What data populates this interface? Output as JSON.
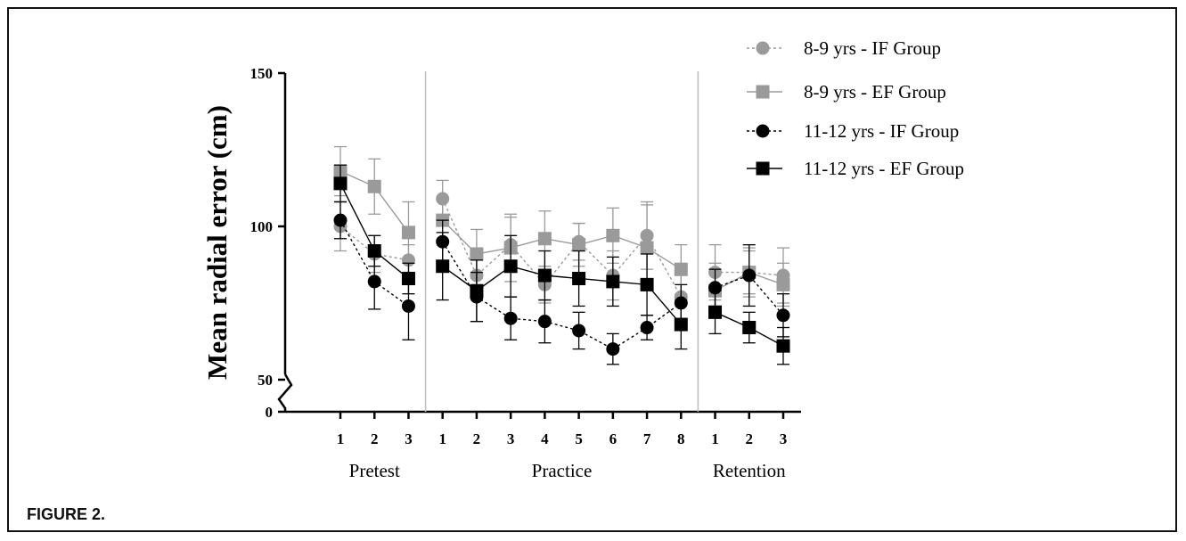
{
  "caption": "FIGURE 2.",
  "chart_data": {
    "type": "line",
    "ylabel": "Mean radial error (cm)",
    "yticks": [
      "0",
      "50",
      "100",
      "150"
    ],
    "ylim_upper": [
      50,
      150
    ],
    "axis_break": true,
    "groups": [
      {
        "label": "Pretest",
        "ticks": [
          "1",
          "2",
          "3"
        ]
      },
      {
        "label": "Practice",
        "ticks": [
          "1",
          "2",
          "3",
          "4",
          "5",
          "6",
          "7",
          "8"
        ]
      },
      {
        "label": "Retention",
        "ticks": [
          "1",
          "2",
          "3"
        ]
      }
    ],
    "legend_position": "top-right",
    "series": [
      {
        "name": "8-9 yrs - IF Group",
        "marker": "circle",
        "color": "#9a9a9a",
        "dash": "dotted",
        "values": [
          100,
          91,
          89,
          109,
          84,
          94,
          81,
          95,
          84,
          97,
          77,
          85,
          85,
          84
        ],
        "errors": [
          8,
          6,
          5,
          6,
          6,
          9,
          6,
          6,
          8,
          11,
          7,
          9,
          7,
          9
        ]
      },
      {
        "name": "8-9 yrs - EF Group",
        "marker": "square",
        "color": "#9a9a9a",
        "dash": "solid",
        "values": [
          118,
          113,
          98,
          102,
          91,
          93,
          96,
          94,
          97,
          93,
          86,
          79,
          85,
          81
        ],
        "errors": [
          8,
          9,
          10,
          7,
          8,
          11,
          9,
          7,
          9,
          14,
          8,
          9,
          8,
          7
        ]
      },
      {
        "name": "11-12 yrs - IF Group",
        "marker": "circle",
        "color": "#000000",
        "dash": "dotted",
        "values": [
          102,
          82,
          74,
          95,
          77,
          70,
          69,
          66,
          60,
          67,
          75,
          80,
          84,
          71
        ],
        "errors": [
          6,
          9,
          11,
          7,
          8,
          7,
          7,
          6,
          5,
          4,
          6,
          6,
          10,
          7
        ]
      },
      {
        "name": "11-12 yrs - EF Group",
        "marker": "square",
        "color": "#000000",
        "dash": "solid",
        "values": [
          114,
          92,
          83,
          87,
          79,
          87,
          84,
          83,
          82,
          81,
          68,
          72,
          67,
          61
        ],
        "errors": [
          6,
          5,
          5,
          11,
          10,
          10,
          8,
          9,
          8,
          10,
          8,
          7,
          5,
          6
        ]
      }
    ]
  }
}
